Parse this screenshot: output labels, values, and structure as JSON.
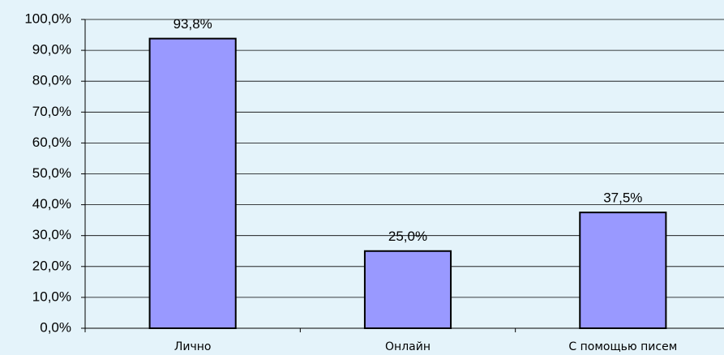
{
  "chart_data": {
    "type": "bar",
    "categories": [
      "Лично",
      "Онлайн",
      "С помощью писем"
    ],
    "values": [
      93.8,
      25.0,
      37.5
    ],
    "value_labels": [
      "93,8%",
      "25,0%",
      "37,5%"
    ],
    "color": "#9999ff",
    "ylim": [
      0,
      100
    ],
    "yticks": [
      {
        "value": 0,
        "label": "0,0%"
      },
      {
        "value": 10,
        "label": "10,0%"
      },
      {
        "value": 20,
        "label": "20,0%"
      },
      {
        "value": 30,
        "label": "30,0%"
      },
      {
        "value": 40,
        "label": "40,0%"
      },
      {
        "value": 50,
        "label": "50,0%"
      },
      {
        "value": 60,
        "label": "60,0%"
      },
      {
        "value": 70,
        "label": "70,0%"
      },
      {
        "value": 80,
        "label": "80,0%"
      },
      {
        "value": 90,
        "label": "90,0%"
      },
      {
        "value": 100,
        "label": "100,0%"
      }
    ],
    "grid": true
  }
}
